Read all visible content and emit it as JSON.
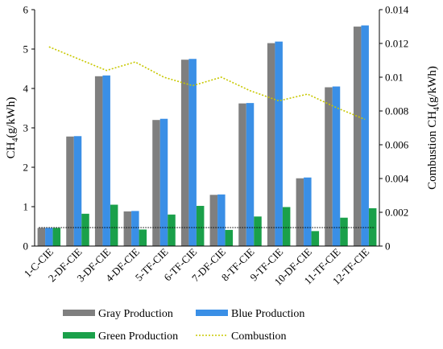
{
  "chart_data": {
    "type": "bar",
    "categories": [
      "1-C-CIE",
      "2-DF-CIE",
      "3-DF-CIE",
      "4-DF-CIE",
      "5-TF-CIE",
      "6-TF-CIE",
      "7-DF-CIE",
      "8-TF-CIE",
      "9-TF-CIE",
      "10-DF-CIE",
      "11-TF-CIE",
      "12-TF-CIE"
    ],
    "series": [
      {
        "name": "Gray Production",
        "axis": "left",
        "kind": "bar",
        "color": "#7f7f7f",
        "values": [
          0.46,
          2.78,
          4.31,
          0.88,
          3.2,
          4.73,
          1.3,
          3.62,
          5.15,
          1.72,
          4.03,
          5.57
        ]
      },
      {
        "name": "Blue Production",
        "axis": "left",
        "kind": "bar",
        "color": "#3a8fe6",
        "values": [
          0.46,
          2.79,
          4.33,
          0.89,
          3.23,
          4.75,
          1.31,
          3.63,
          5.19,
          1.74,
          4.05,
          5.6
        ]
      },
      {
        "name": "Green Production",
        "axis": "left",
        "kind": "bar",
        "color": "#1aa04a",
        "values": [
          0.46,
          0.82,
          1.05,
          0.42,
          0.8,
          1.02,
          0.41,
          0.75,
          0.99,
          0.38,
          0.72,
          0.96
        ]
      },
      {
        "name": "Combustion",
        "axis": "right",
        "kind": "line",
        "color": "#c8c800",
        "values": [
          0.0118,
          0.0111,
          0.0104,
          0.0109,
          0.01,
          0.0095,
          0.01,
          0.0092,
          0.0086,
          0.009,
          0.0082,
          0.0075
        ]
      }
    ],
    "reference_line": {
      "axis": "left",
      "value": 0.47
    },
    "ylabel": "CH4(g/kWh)",
    "ylabel_right": "Combustion CH4(g/kWh)",
    "ylim": [
      0,
      6
    ],
    "ylim_right": [
      0,
      0.014
    ],
    "yticks": [
      "0",
      "1",
      "2",
      "3",
      "4",
      "5",
      "6"
    ],
    "yticks_right": [
      "0",
      "0.002",
      "0.004",
      "0.006",
      "0.008",
      "0.01",
      "0.012",
      "0.014"
    ],
    "legend_position": "bottom",
    "grid": false
  }
}
